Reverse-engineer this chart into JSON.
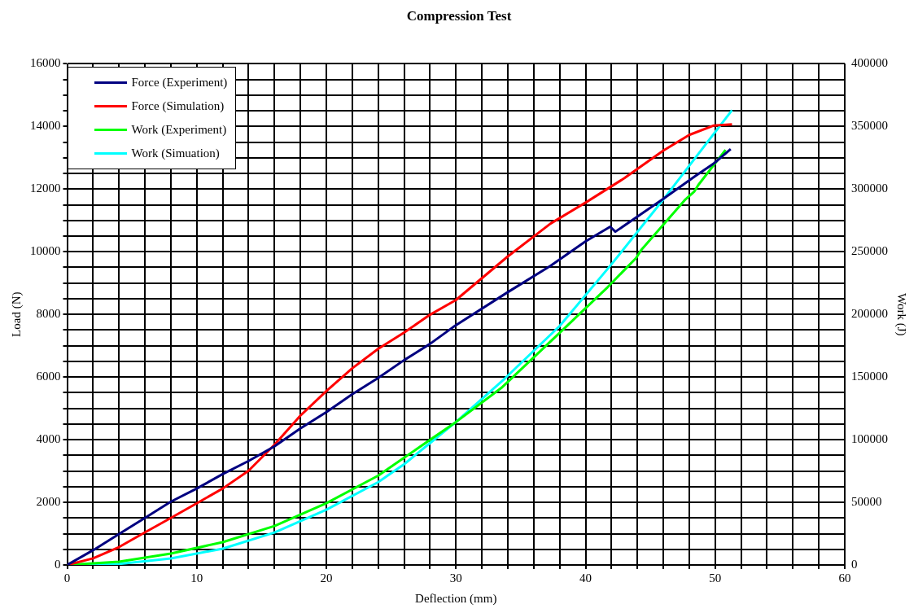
{
  "chart_data": {
    "type": "line",
    "title": "Compression Test",
    "xlabel": "Deflection (mm)",
    "ylabel": "Load (N)",
    "y2label": "Work (J)",
    "xlim": [
      0,
      60
    ],
    "ylim": [
      0,
      16000
    ],
    "y2lim": [
      0,
      400000
    ],
    "xticks": [
      0,
      {
        "value": 2,
        "label": null
      },
      {
        "value": 4,
        "label": null
      },
      {
        "value": 6,
        "label": null
      },
      {
        "value": 8,
        "label": null
      },
      10,
      {
        "value": 12,
        "label": null
      },
      {
        "value": 14,
        "label": null
      },
      {
        "value": 16,
        "label": null
      },
      {
        "value": 18,
        "label": null
      },
      20,
      {
        "value": 22,
        "label": null
      },
      {
        "value": 24,
        "label": null
      },
      {
        "value": 26,
        "label": null
      },
      {
        "value": 28,
        "label": null
      },
      30,
      {
        "value": 32,
        "label": null
      },
      {
        "value": 34,
        "label": null
      },
      {
        "value": 36,
        "label": null
      },
      {
        "value": 38,
        "label": null
      },
      40,
      {
        "value": 42,
        "label": null
      },
      {
        "value": 44,
        "label": null
      },
      {
        "value": 46,
        "label": null
      },
      {
        "value": 48,
        "label": null
      },
      50,
      {
        "value": 52,
        "label": null
      },
      {
        "value": 54,
        "label": null
      },
      {
        "value": 56,
        "label": null
      },
      {
        "value": 58,
        "label": null
      },
      60
    ],
    "yticks": [
      0,
      {
        "value": 500,
        "label": null
      },
      {
        "value": 1000,
        "label": null
      },
      {
        "value": 1500,
        "label": null
      },
      2000,
      {
        "value": 2500,
        "label": null
      },
      {
        "value": 3000,
        "label": null
      },
      {
        "value": 3500,
        "label": null
      },
      4000,
      {
        "value": 4500,
        "label": null
      },
      {
        "value": 5000,
        "label": null
      },
      {
        "value": 5500,
        "label": null
      },
      6000,
      {
        "value": 6500,
        "label": null
      },
      {
        "value": 7000,
        "label": null
      },
      {
        "value": 7500,
        "label": null
      },
      8000,
      {
        "value": 8500,
        "label": null
      },
      {
        "value": 9000,
        "label": null
      },
      {
        "value": 9500,
        "label": null
      },
      10000,
      {
        "value": 10500,
        "label": null
      },
      {
        "value": 11000,
        "label": null
      },
      {
        "value": 11500,
        "label": null
      },
      12000,
      {
        "value": 12500,
        "label": null
      },
      {
        "value": 13000,
        "label": null
      },
      {
        "value": 13500,
        "label": null
      },
      14000,
      {
        "value": 14500,
        "label": null
      },
      {
        "value": 15000,
        "label": null
      },
      {
        "value": 15500,
        "label": null
      },
      16000
    ],
    "y2ticks": [
      0,
      50000,
      100000,
      150000,
      200000,
      250000,
      300000,
      350000,
      400000
    ],
    "grid": true,
    "legend": "top left",
    "marker": "none",
    "line_style": "solid",
    "series": [
      {
        "name": "Force (Experiment)",
        "color": "#000080",
        "x": [
          0,
          2,
          4,
          6,
          8,
          10,
          12,
          14,
          16,
          18,
          20,
          22,
          24,
          26,
          28,
          29.8,
          34,
          37.3,
          40,
          41.9,
          42.3,
          44.1,
          46,
          48.4,
          49.9,
          51.2
        ],
        "values": [
          0,
          470,
          990,
          1500,
          2020,
          2440,
          2900,
          3320,
          3790,
          4360,
          4880,
          5450,
          5970,
          6540,
          7060,
          7600,
          8710,
          9550,
          10330,
          10800,
          10640,
          11150,
          11690,
          12400,
          12820,
          13280
        ]
      },
      {
        "name": "Force (Simulation)",
        "color": "#ff0000",
        "x": [
          0,
          2,
          4,
          6,
          8,
          10,
          12,
          14,
          16,
          18,
          20,
          22,
          24,
          26,
          28,
          30,
          34,
          37.3,
          40,
          43,
          46,
          48,
          49.9,
          51.3
        ],
        "values": [
          0,
          210,
          570,
          1040,
          1500,
          1970,
          2440,
          3010,
          3840,
          4770,
          5550,
          6280,
          6900,
          7420,
          7990,
          8460,
          9850,
          10900,
          11570,
          12350,
          13230,
          13730,
          14030,
          14070
        ]
      },
      {
        "name": "Work (Experiment)",
        "color": "#00ff00",
        "axis": "y2",
        "x": [
          0,
          4,
          8,
          12,
          16,
          20,
          24,
          26,
          28,
          30,
          33.5,
          38,
          41.7,
          43.9,
          44.3,
          47.7,
          48.4,
          48.7,
          50.8
        ],
        "values": [
          0,
          2600,
          9100,
          18200,
          31100,
          49300,
          71300,
          85600,
          99900,
          114100,
          141300,
          185300,
          221700,
          245000,
          251500,
          291700,
          298200,
          303300,
          331300
        ]
      },
      {
        "name": "Work (Simuation)",
        "color": "#00ffff",
        "axis": "y2",
        "x": [
          0,
          4,
          8,
          12,
          16,
          20,
          24,
          26,
          28,
          30,
          33.8,
          38,
          42,
          46,
          48.7,
          51.3
        ],
        "values": [
          0,
          800,
          5200,
          13000,
          25900,
          44100,
          66100,
          80400,
          97300,
          114100,
          149100,
          190700,
          240000,
          291700,
          328000,
          363000
        ]
      }
    ]
  }
}
